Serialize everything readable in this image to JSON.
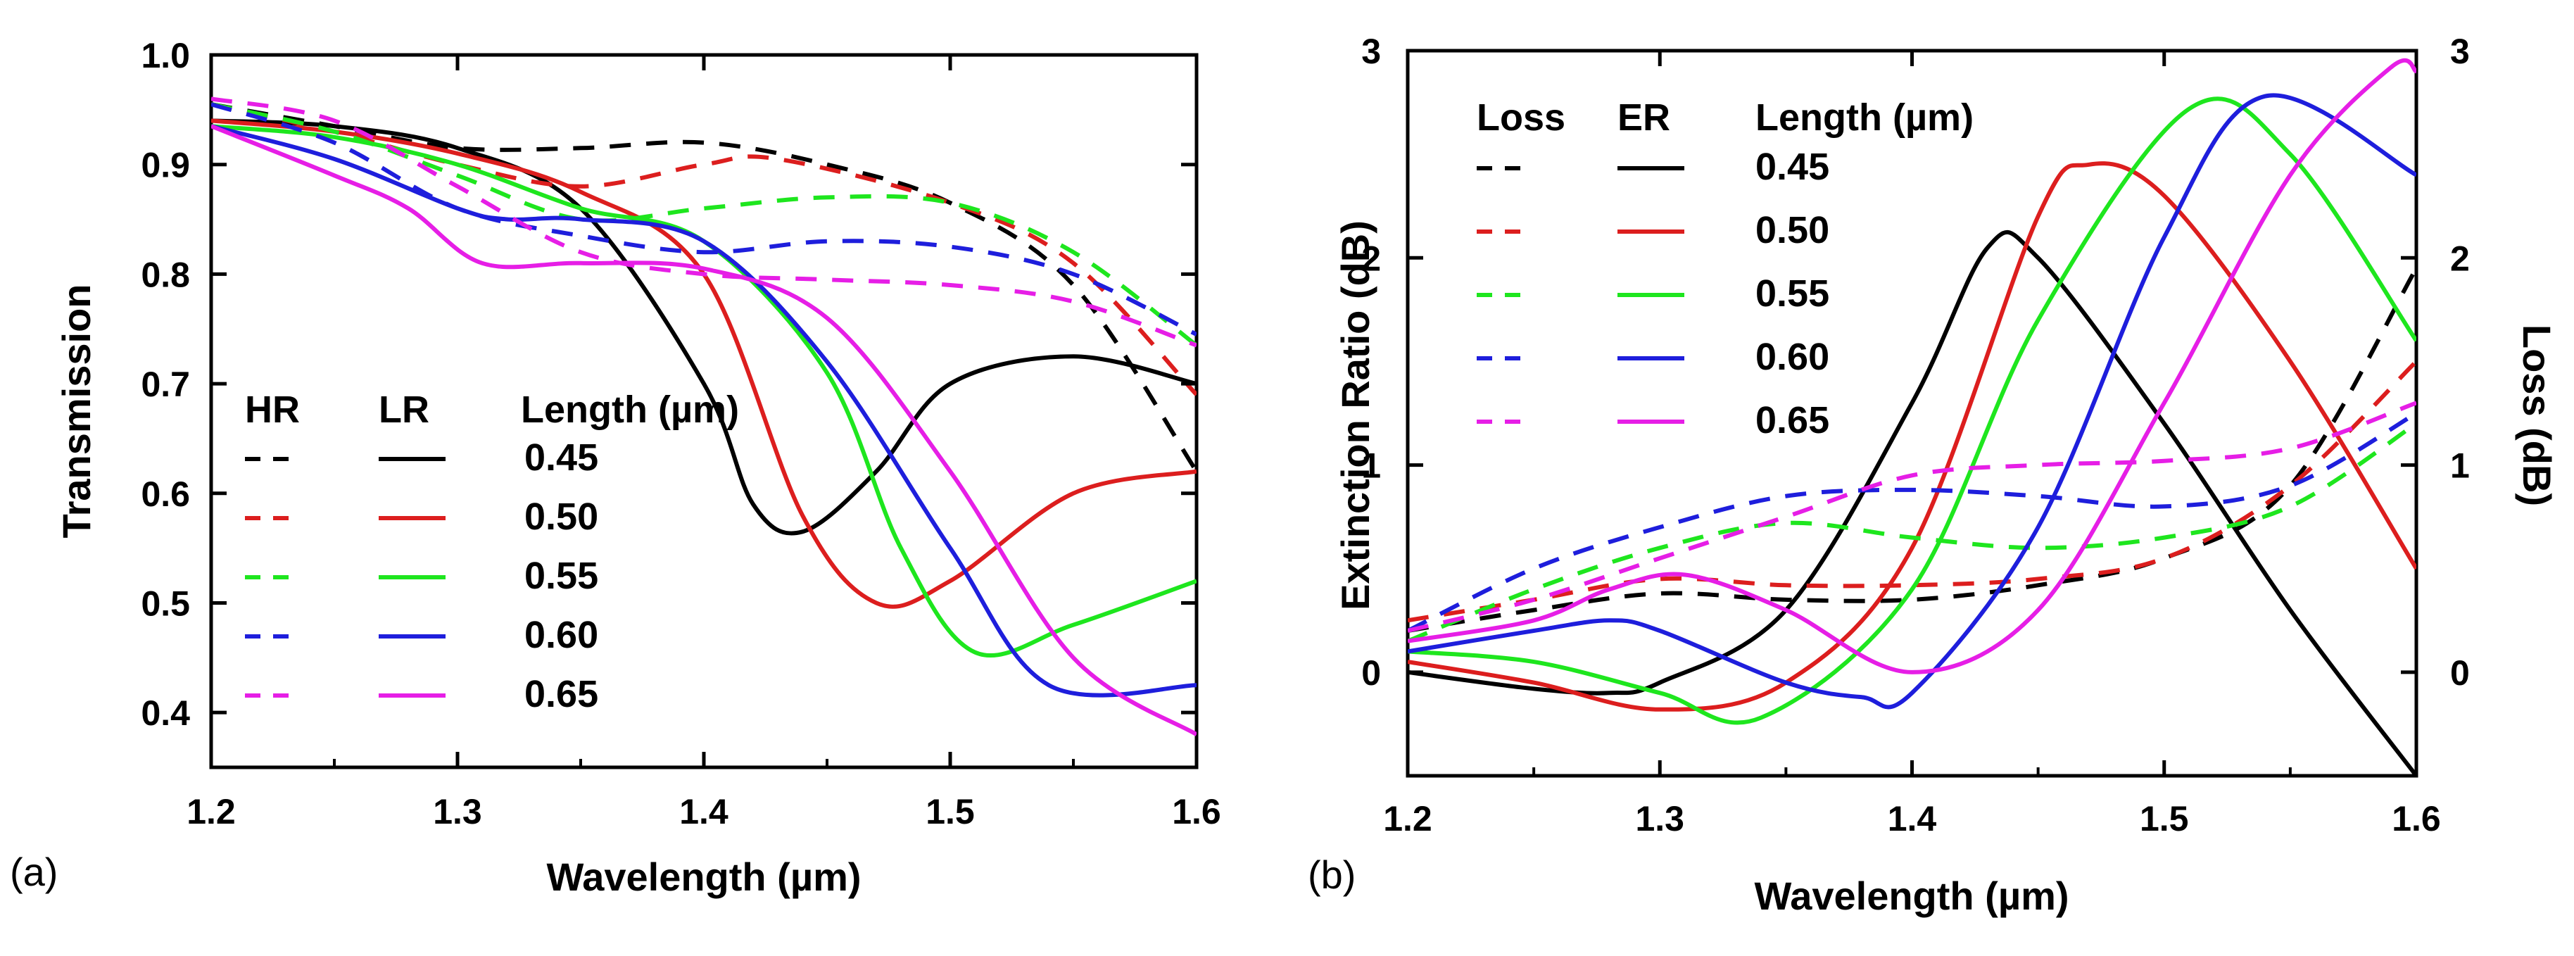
{
  "chart_data": [
    {
      "panel": "(a)",
      "type": "line",
      "xlabel": "Wavelength (µm)",
      "ylabel": "Transmission",
      "xlim": [
        1.2,
        1.6
      ],
      "ylim": [
        0.35,
        1.0
      ],
      "xticks": [
        "1.2",
        "1.3",
        "1.4",
        "1.5",
        "1.6"
      ],
      "yticks": [
        "0.4",
        "0.5",
        "0.6",
        "0.7",
        "0.8",
        "0.9",
        "1.0"
      ],
      "ytick_values": [
        0.4,
        0.5,
        0.6,
        0.7,
        0.8,
        0.9,
        1.0
      ],
      "legend": {
        "headers": [
          "HR",
          "LR",
          "Length (µm)"
        ],
        "rows": [
          "0.45",
          "0.50",
          "0.55",
          "0.60",
          "0.65"
        ]
      },
      "series": [
        {
          "name": "HR 0.45",
          "color": "#000000",
          "dashed": true,
          "x": [
            1.2,
            1.25,
            1.3,
            1.35,
            1.4,
            1.45,
            1.5,
            1.55,
            1.6
          ],
          "y": [
            0.955,
            0.935,
            0.915,
            0.915,
            0.92,
            0.9,
            0.865,
            0.79,
            0.62
          ]
        },
        {
          "name": "LR 0.45",
          "color": "#000000",
          "dashed": false,
          "x": [
            1.2,
            1.25,
            1.3,
            1.35,
            1.4,
            1.42,
            1.44,
            1.47,
            1.5,
            1.55,
            1.6
          ],
          "y": [
            0.94,
            0.935,
            0.915,
            0.86,
            0.7,
            0.59,
            0.565,
            0.62,
            0.7,
            0.725,
            0.7
          ]
        },
        {
          "name": "HR 0.50",
          "color": "#dc1e1e",
          "dashed": true,
          "x": [
            1.2,
            1.25,
            1.3,
            1.35,
            1.4,
            1.43,
            1.5,
            1.55,
            1.6
          ],
          "y": [
            0.955,
            0.93,
            0.9,
            0.88,
            0.9,
            0.905,
            0.865,
            0.81,
            0.69
          ]
        },
        {
          "name": "LR 0.50",
          "color": "#dc1e1e",
          "dashed": false,
          "x": [
            1.2,
            1.25,
            1.3,
            1.35,
            1.4,
            1.44,
            1.47,
            1.5,
            1.55,
            1.6
          ],
          "y": [
            0.94,
            0.93,
            0.91,
            0.875,
            0.8,
            0.58,
            0.5,
            0.52,
            0.6,
            0.62
          ]
        },
        {
          "name": "HR 0.55",
          "color": "#1ee61e",
          "dashed": true,
          "x": [
            1.2,
            1.25,
            1.3,
            1.35,
            1.4,
            1.45,
            1.5,
            1.55,
            1.6
          ],
          "y": [
            0.955,
            0.93,
            0.89,
            0.85,
            0.86,
            0.87,
            0.865,
            0.82,
            0.735
          ]
        },
        {
          "name": "LR 0.55",
          "color": "#1ee61e",
          "dashed": false,
          "x": [
            1.2,
            1.25,
            1.3,
            1.35,
            1.4,
            1.45,
            1.48,
            1.51,
            1.55,
            1.6
          ],
          "y": [
            0.935,
            0.925,
            0.9,
            0.86,
            0.83,
            0.71,
            0.55,
            0.455,
            0.48,
            0.52
          ]
        },
        {
          "name": "HR 0.60",
          "color": "#1e1edc",
          "dashed": true,
          "x": [
            1.2,
            1.25,
            1.3,
            1.35,
            1.4,
            1.45,
            1.5,
            1.55,
            1.6
          ],
          "y": [
            0.955,
            0.92,
            0.86,
            0.835,
            0.82,
            0.83,
            0.825,
            0.8,
            0.745
          ]
        },
        {
          "name": "LR 0.60",
          "color": "#1e1edc",
          "dashed": false,
          "x": [
            1.2,
            1.25,
            1.3,
            1.32,
            1.35,
            1.4,
            1.45,
            1.5,
            1.54,
            1.6
          ],
          "y": [
            0.935,
            0.905,
            0.86,
            0.85,
            0.85,
            0.83,
            0.72,
            0.55,
            0.425,
            0.425
          ]
        },
        {
          "name": "HR 0.65",
          "color": "#e61ee6",
          "dashed": true,
          "x": [
            1.2,
            1.25,
            1.3,
            1.35,
            1.4,
            1.45,
            1.5,
            1.55,
            1.6
          ],
          "y": [
            0.96,
            0.94,
            0.88,
            0.82,
            0.8,
            0.795,
            0.79,
            0.775,
            0.735
          ]
        },
        {
          "name": "LR 0.65",
          "color": "#e61ee6",
          "dashed": false,
          "x": [
            1.2,
            1.25,
            1.28,
            1.31,
            1.35,
            1.4,
            1.45,
            1.5,
            1.55,
            1.6
          ],
          "y": [
            0.935,
            0.89,
            0.86,
            0.81,
            0.81,
            0.805,
            0.76,
            0.62,
            0.45,
            0.38
          ]
        }
      ]
    },
    {
      "panel": "(b)",
      "type": "line",
      "xlabel": "Wavelength (µm)",
      "ylabel": "Extinction Ratio (dB)",
      "ylabel_right": "Loss (dB)",
      "xlim": [
        1.2,
        1.6
      ],
      "ylim": [
        -0.5,
        3.0
      ],
      "xticks": [
        "1.2",
        "1.3",
        "1.4",
        "1.5",
        "1.6"
      ],
      "yticks": [
        "0",
        "1",
        "2",
        "3"
      ],
      "ytick_values": [
        0,
        1,
        2,
        3
      ],
      "yticks_right": [
        "0",
        "1",
        "2",
        "3"
      ],
      "legend": {
        "headers": [
          "Loss",
          "ER",
          "Length (µm)"
        ],
        "rows": [
          "0.45",
          "0.50",
          "0.55",
          "0.60",
          "0.65"
        ]
      },
      "series": [
        {
          "name": "Loss 0.45",
          "color": "#000000",
          "dashed": true,
          "x": [
            1.2,
            1.25,
            1.3,
            1.35,
            1.4,
            1.45,
            1.5,
            1.55,
            1.6
          ],
          "y": [
            0.2,
            0.3,
            0.38,
            0.35,
            0.35,
            0.42,
            0.55,
            0.9,
            1.95
          ]
        },
        {
          "name": "ER 0.45",
          "color": "#000000",
          "dashed": false,
          "x": [
            1.2,
            1.25,
            1.28,
            1.3,
            1.35,
            1.4,
            1.43,
            1.45,
            1.5,
            1.55,
            1.6
          ],
          "y": [
            0.0,
            -0.08,
            -0.1,
            -0.05,
            0.3,
            1.3,
            2.05,
            2.0,
            1.2,
            0.3,
            -0.5
          ]
        },
        {
          "name": "Loss 0.50",
          "color": "#dc1e1e",
          "dashed": true,
          "x": [
            1.2,
            1.25,
            1.3,
            1.35,
            1.4,
            1.45,
            1.5,
            1.55,
            1.6
          ],
          "y": [
            0.25,
            0.35,
            0.45,
            0.42,
            0.42,
            0.45,
            0.55,
            0.9,
            1.5
          ]
        },
        {
          "name": "ER 0.50",
          "color": "#dc1e1e",
          "dashed": false,
          "x": [
            1.2,
            1.25,
            1.3,
            1.35,
            1.4,
            1.45,
            1.47,
            1.5,
            1.55,
            1.6
          ],
          "y": [
            0.05,
            -0.05,
            -0.18,
            -0.05,
            0.6,
            2.2,
            2.45,
            2.3,
            1.5,
            0.5
          ]
        },
        {
          "name": "Loss 0.55",
          "color": "#1ee61e",
          "dashed": true,
          "x": [
            1.2,
            1.25,
            1.3,
            1.35,
            1.4,
            1.45,
            1.5,
            1.55,
            1.6
          ],
          "y": [
            0.15,
            0.4,
            0.6,
            0.72,
            0.65,
            0.6,
            0.65,
            0.8,
            1.2
          ]
        },
        {
          "name": "ER 0.55",
          "color": "#1ee61e",
          "dashed": false,
          "x": [
            1.2,
            1.25,
            1.3,
            1.34,
            1.4,
            1.45,
            1.51,
            1.55,
            1.6
          ],
          "y": [
            0.1,
            0.05,
            -0.1,
            -0.22,
            0.4,
            1.7,
            2.72,
            2.5,
            1.6
          ]
        },
        {
          "name": "Loss 0.60",
          "color": "#1e1edc",
          "dashed": true,
          "x": [
            1.2,
            1.25,
            1.3,
            1.35,
            1.4,
            1.45,
            1.5,
            1.55,
            1.6
          ],
          "y": [
            0.2,
            0.5,
            0.7,
            0.85,
            0.88,
            0.85,
            0.8,
            0.9,
            1.25
          ]
        },
        {
          "name": "ER 0.60",
          "color": "#1e1edc",
          "dashed": false,
          "x": [
            1.2,
            1.25,
            1.28,
            1.3,
            1.35,
            1.38,
            1.4,
            1.45,
            1.5,
            1.54,
            1.6
          ],
          "y": [
            0.1,
            0.2,
            0.25,
            0.2,
            -0.05,
            -0.12,
            -0.1,
            0.7,
            2.1,
            2.78,
            2.4
          ]
        },
        {
          "name": "Loss 0.65",
          "color": "#e61ee6",
          "dashed": true,
          "x": [
            1.2,
            1.25,
            1.3,
            1.35,
            1.4,
            1.45,
            1.5,
            1.55,
            1.6
          ],
          "y": [
            0.2,
            0.35,
            0.55,
            0.75,
            0.95,
            1.0,
            1.02,
            1.08,
            1.3
          ]
        },
        {
          "name": "ER 0.65",
          "color": "#e61ee6",
          "dashed": false,
          "x": [
            1.2,
            1.25,
            1.28,
            1.31,
            1.35,
            1.4,
            1.45,
            1.5,
            1.55,
            1.59,
            1.6
          ],
          "y": [
            0.15,
            0.25,
            0.4,
            0.47,
            0.3,
            0.0,
            0.3,
            1.3,
            2.4,
            2.92,
            2.9
          ]
        }
      ]
    }
  ]
}
